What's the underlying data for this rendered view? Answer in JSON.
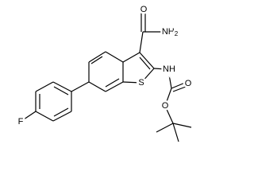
{
  "atoms": [
    {
      "label": "O"
    },
    {
      "label": "NH",
      "subscript": "2"
    },
    {
      "label": "NH"
    },
    {
      "label": "S"
    },
    {
      "label": "O"
    },
    {
      "label": "O"
    },
    {
      "label": "F"
    }
  ]
}
